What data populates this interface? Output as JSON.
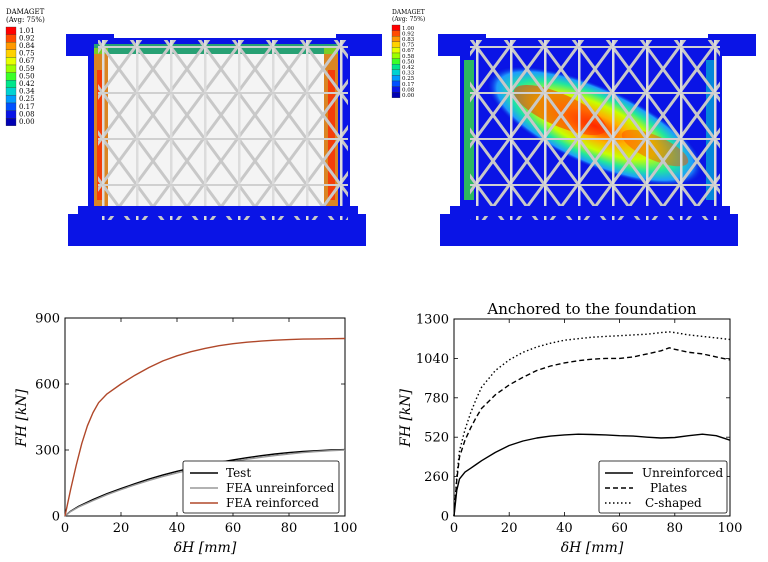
{
  "damage_panels": [
    {
      "legend_title": "DAMAGET",
      "legend_subtitle": "(Avg: 75%)",
      "legend_values": [
        "1.01",
        "0.92",
        "0.84",
        "0.75",
        "0.67",
        "0.59",
        "0.50",
        "0.42",
        "0.34",
        "0.25",
        "0.17",
        "0.08",
        "0.00"
      ]
    },
    {
      "legend_title": "DAMAGET",
      "legend_subtitle": "(Avg: 75%)",
      "legend_values": [
        "1.00",
        "0.92",
        "0.83",
        "0.75",
        "0.67",
        "0.58",
        "0.50",
        "0.42",
        "0.33",
        "0.25",
        "0.17",
        "0.08",
        "0.00"
      ]
    }
  ],
  "colormap": [
    "#ff0000",
    "#ff4c00",
    "#ff9900",
    "#ffd200",
    "#e6ff00",
    "#9cff00",
    "#3cff28",
    "#00e68c",
    "#00d2d2",
    "#009bff",
    "#0050ff",
    "#0a14e6",
    "#0000b4"
  ],
  "chart_data": [
    {
      "type": "line",
      "title": "",
      "xlabel": "δH [mm]",
      "ylabel": "FH [kN]",
      "xlim": [
        0,
        100
      ],
      "ylim": [
        0,
        900
      ],
      "xticks": [
        "0",
        "20",
        "40",
        "60",
        "80",
        "100"
      ],
      "yticks": [
        "0",
        "300",
        "600",
        "900"
      ],
      "legend_position": "bottom-right",
      "series": [
        {
          "name": "Test",
          "color": "#000000",
          "dash": "",
          "x": [
            0,
            2,
            5,
            10,
            15,
            20,
            25,
            30,
            35,
            40,
            45,
            50,
            55,
            60,
            65,
            70,
            75,
            80,
            85,
            90,
            95,
            100
          ],
          "y": [
            0,
            22,
            45,
            75,
            102,
            125,
            147,
            168,
            187,
            203,
            218,
            232,
            244,
            255,
            265,
            274,
            282,
            288,
            293,
            297,
            300,
            302
          ]
        },
        {
          "name": "FEA unreinforced",
          "color": "#999999",
          "dash": "",
          "x": [
            0,
            2,
            5,
            10,
            15,
            20,
            25,
            30,
            35,
            40,
            45,
            50,
            55,
            60,
            65,
            70,
            75,
            80,
            85,
            90,
            95,
            100
          ],
          "y": [
            0,
            20,
            42,
            70,
            97,
            120,
            142,
            162,
            180,
            196,
            211,
            225,
            237,
            248,
            258,
            267,
            275,
            282,
            288,
            293,
            297,
            300
          ]
        },
        {
          "name": "FEA reinforced",
          "color": "#b0482a",
          "dash": "",
          "x": [
            0,
            2,
            4,
            6,
            8,
            10,
            12,
            15,
            20,
            25,
            30,
            35,
            40,
            45,
            50,
            55,
            60,
            65,
            70,
            75,
            80,
            85,
            90,
            95,
            100
          ],
          "y": [
            0,
            120,
            230,
            330,
            410,
            470,
            515,
            555,
            600,
            640,
            675,
            705,
            728,
            747,
            762,
            774,
            783,
            790,
            795,
            799,
            802,
            804,
            805,
            806,
            807
          ]
        }
      ]
    },
    {
      "type": "line",
      "title": "Anchored to the foundation",
      "xlabel": "δH [mm]",
      "ylabel": "FH [kN]",
      "xlim": [
        0,
        100
      ],
      "ylim": [
        0,
        1300
      ],
      "xticks": [
        "0",
        "20",
        "40",
        "60",
        "80",
        "100"
      ],
      "yticks": [
        "0",
        "260",
        "520",
        "780",
        "1040",
        "1300"
      ],
      "legend_position": "bottom-right",
      "series": [
        {
          "name": "Unreinforced",
          "color": "#000000",
          "dash": "",
          "x": [
            0,
            1,
            2,
            4,
            6,
            8,
            10,
            15,
            20,
            25,
            30,
            35,
            40,
            45,
            50,
            55,
            60,
            65,
            70,
            75,
            80,
            85,
            90,
            95,
            100
          ],
          "y": [
            0,
            170,
            245,
            290,
            315,
            340,
            365,
            420,
            465,
            495,
            515,
            527,
            535,
            540,
            538,
            535,
            530,
            527,
            520,
            515,
            518,
            530,
            540,
            530,
            500
          ]
        },
        {
          "name": "Plates",
          "color": "#000000",
          "dash": "5,3",
          "x": [
            0,
            1,
            2,
            4,
            6,
            8,
            10,
            15,
            20,
            25,
            30,
            35,
            40,
            45,
            50,
            55,
            60,
            65,
            70,
            75,
            78,
            80,
            85,
            90,
            95,
            100
          ],
          "y": [
            0,
            240,
            390,
            500,
            580,
            650,
            710,
            800,
            865,
            915,
            960,
            990,
            1010,
            1025,
            1035,
            1040,
            1040,
            1050,
            1070,
            1090,
            1110,
            1100,
            1080,
            1070,
            1050,
            1030
          ]
        },
        {
          "name": "C-shaped",
          "color": "#000000",
          "dash": "1.5,2.5",
          "x": [
            0,
            1,
            2,
            4,
            6,
            8,
            10,
            15,
            20,
            25,
            30,
            35,
            40,
            45,
            50,
            55,
            60,
            65,
            70,
            75,
            78,
            80,
            85,
            90,
            95,
            100
          ],
          "y": [
            0,
            260,
            430,
            570,
            680,
            770,
            850,
            960,
            1030,
            1080,
            1115,
            1140,
            1160,
            1170,
            1180,
            1185,
            1190,
            1195,
            1200,
            1210,
            1215,
            1210,
            1195,
            1185,
            1175,
            1165
          ]
        }
      ]
    }
  ]
}
